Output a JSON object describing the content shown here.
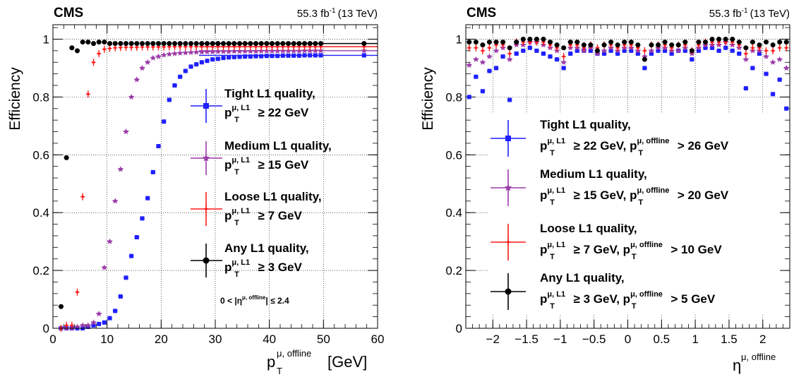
{
  "experiment": "CMS",
  "luminosity": "55.3 fb",
  "luminosity_sup": "-1",
  "energy": "(13 TeV)",
  "colors": {
    "tight": "#1f1fff",
    "medium": "#9b3aa8",
    "loose": "#ff1a1a",
    "any": "#000000"
  },
  "chart_data": [
    {
      "type": "scatter",
      "ylabel": "Efficiency",
      "xlabel": "p",
      "xlabel_sup": "μ, offline",
      "xlabel_sub": "T",
      "xlabel_unit": "[GeV]",
      "xlim": [
        0,
        60
      ],
      "ylim": [
        0,
        1.05
      ],
      "xticks": [
        "0",
        "10",
        "20",
        "30",
        "40",
        "50",
        "60"
      ],
      "yticks": [
        "0",
        "0.2",
        "0.4",
        "0.6",
        "0.8",
        "1"
      ],
      "grid": true,
      "legend_position": "right",
      "annotation": {
        "prefix": "0 < |η",
        "sup": "μ, offline",
        "suffix": "| ≤ 2.4"
      },
      "series": [
        {
          "key": "tight",
          "legend_line1": "Tight L1 quality,",
          "legend_line2": "≥ 22 GeV",
          "marker": "square",
          "x": [
            1.5,
            2.5,
            3.5,
            4.5,
            5.5,
            6.5,
            7.5,
            8.5,
            9.5,
            10.5,
            11.5,
            12.5,
            13.5,
            14.5,
            15.5,
            16.5,
            17.5,
            18.5,
            19.5,
            20.5,
            21.5,
            22.5,
            23.5,
            24.5,
            25.5,
            26.5,
            27.5,
            28.5,
            29.5,
            30.5,
            31.5,
            32.5,
            33.5,
            34.5,
            35.5,
            36.5,
            37.5,
            38.5,
            39.5,
            40.5,
            41.5,
            42.5,
            43.5,
            44.5,
            45.5,
            46.5,
            47.5,
            48.5,
            49.5,
            57.5
          ],
          "y": [
            0.0,
            0.0,
            0.0,
            0.0,
            0.0,
            0.005,
            0.01,
            0.015,
            0.02,
            0.035,
            0.06,
            0.11,
            0.175,
            0.25,
            0.315,
            0.38,
            0.45,
            0.54,
            0.63,
            0.715,
            0.79,
            0.84,
            0.87,
            0.89,
            0.905,
            0.913,
            0.92,
            0.925,
            0.93,
            0.932,
            0.935,
            0.937,
            0.938,
            0.939,
            0.94,
            0.94,
            0.941,
            0.941,
            0.942,
            0.942,
            0.942,
            0.943,
            0.943,
            0.943,
            0.943,
            0.944,
            0.944,
            0.944,
            0.944,
            0.944
          ]
        },
        {
          "key": "medium",
          "legend_line1": "Medium L1 quality,",
          "legend_line2": "≥ 15 GeV",
          "marker": "star",
          "x": [
            1.5,
            2.5,
            3.5,
            4.5,
            5.5,
            6.5,
            7.5,
            8.5,
            9.5,
            10.5,
            11.5,
            12.5,
            13.5,
            14.5,
            15.5,
            16.5,
            17.5,
            18.5,
            19.5,
            20.5,
            21.5,
            22.5,
            23.5,
            24.5,
            25.5,
            26.5,
            27.5,
            28.5,
            29.5,
            30.5,
            31.5,
            32.5,
            33.5,
            34.5,
            35.5,
            36.5,
            37.5,
            38.5,
            39.5,
            40.5,
            41.5,
            42.5,
            43.5,
            44.5,
            45.5,
            46.5,
            47.5,
            48.5,
            49.5,
            57.5
          ],
          "y": [
            0.0,
            0.0,
            0.0,
            0.005,
            0.01,
            0.01,
            0.02,
            0.05,
            0.21,
            0.3,
            0.44,
            0.55,
            0.68,
            0.8,
            0.86,
            0.9,
            0.92,
            0.935,
            0.94,
            0.945,
            0.948,
            0.95,
            0.952,
            0.953,
            0.954,
            0.955,
            0.955,
            0.956,
            0.956,
            0.957,
            0.957,
            0.957,
            0.958,
            0.958,
            0.958,
            0.958,
            0.958,
            0.959,
            0.959,
            0.959,
            0.959,
            0.959,
            0.959,
            0.959,
            0.959,
            0.96,
            0.96,
            0.96,
            0.96,
            0.96
          ]
        },
        {
          "key": "loose",
          "legend_line1": "Loose L1 quality,",
          "legend_line2": "≥ 7 GeV",
          "marker": "cross",
          "x": [
            1.5,
            2.5,
            3.5,
            4.5,
            5.5,
            6.5,
            7.5,
            8.5,
            9.5,
            10.5,
            11.5,
            12.5,
            13.5,
            14.5,
            15.5,
            16.5,
            17.5,
            18.5,
            19.5,
            20.5,
            21.5,
            22.5,
            23.5,
            24.5,
            25.5,
            26.5,
            27.5,
            28.5,
            29.5,
            30.5,
            31.5,
            32.5,
            33.5,
            34.5,
            35.5,
            36.5,
            37.5,
            38.5,
            39.5,
            40.5,
            41.5,
            42.5,
            43.5,
            44.5,
            45.5,
            46.5,
            47.5,
            48.5,
            49.5,
            57.5
          ],
          "y": [
            0.0,
            0.01,
            0.01,
            0.125,
            0.455,
            0.81,
            0.92,
            0.95,
            0.965,
            0.968,
            0.97,
            0.971,
            0.972,
            0.972,
            0.972,
            0.973,
            0.973,
            0.973,
            0.973,
            0.973,
            0.974,
            0.974,
            0.974,
            0.974,
            0.974,
            0.974,
            0.974,
            0.974,
            0.974,
            0.974,
            0.974,
            0.974,
            0.974,
            0.974,
            0.974,
            0.974,
            0.974,
            0.974,
            0.974,
            0.974,
            0.974,
            0.974,
            0.974,
            0.974,
            0.974,
            0.974,
            0.974,
            0.974,
            0.974,
            0.974
          ]
        },
        {
          "key": "any",
          "legend_line1": "Any L1 quality,",
          "legend_line2": "≥ 3 GeV",
          "marker": "circle",
          "x": [
            1.5,
            2.5,
            3.5,
            4.5,
            5.5,
            6.5,
            7.5,
            8.5,
            9.5,
            10.5,
            11.5,
            12.5,
            13.5,
            14.5,
            15.5,
            16.5,
            17.5,
            18.5,
            19.5,
            20.5,
            21.5,
            22.5,
            23.5,
            24.5,
            25.5,
            26.5,
            27.5,
            28.5,
            29.5,
            30.5,
            31.5,
            32.5,
            33.5,
            34.5,
            35.5,
            36.5,
            37.5,
            38.5,
            39.5,
            40.5,
            41.5,
            42.5,
            43.5,
            44.5,
            45.5,
            46.5,
            47.5,
            48.5,
            49.5,
            57.5
          ],
          "y": [
            0.075,
            0.59,
            0.97,
            0.96,
            0.99,
            0.99,
            0.985,
            0.99,
            0.99,
            0.985,
            0.985,
            0.985,
            0.985,
            0.985,
            0.985,
            0.985,
            0.985,
            0.985,
            0.985,
            0.985,
            0.985,
            0.985,
            0.985,
            0.985,
            0.985,
            0.985,
            0.985,
            0.985,
            0.985,
            0.985,
            0.985,
            0.985,
            0.985,
            0.985,
            0.985,
            0.985,
            0.985,
            0.985,
            0.985,
            0.985,
            0.985,
            0.985,
            0.985,
            0.985,
            0.985,
            0.985,
            0.985,
            0.985,
            0.985,
            0.985
          ]
        }
      ]
    },
    {
      "type": "scatter",
      "ylabel": "Efficiency",
      "xlabel": "η",
      "xlabel_sup": "μ, offline",
      "xlim": [
        -2.4,
        2.4
      ],
      "ylim": [
        0,
        1.05
      ],
      "xticks": [
        "−2",
        "−1.5",
        "−1",
        "−0.5",
        "0",
        "0.5",
        "1",
        "1.5",
        "2"
      ],
      "xtick_values": [
        -2,
        -1.5,
        -1,
        -0.5,
        0,
        0.5,
        1,
        1.5,
        2
      ],
      "yticks": [
        "0",
        "0.2",
        "0.4",
        "0.6",
        "0.8",
        "1"
      ],
      "grid": true,
      "legend_position": "bottom-center",
      "series": [
        {
          "key": "tight",
          "legend_line1": "Tight L1 quality,",
          "legend_line2a": "≥ 22 GeV, p",
          "legend_line2b": "> 26 GeV",
          "marker": "square",
          "x": [
            -2.35,
            -2.25,
            -2.15,
            -2.05,
            -1.95,
            -1.85,
            -1.75,
            -1.65,
            -1.55,
            -1.45,
            -1.35,
            -1.25,
            -1.15,
            -1.05,
            -0.95,
            -0.85,
            -0.75,
            -0.65,
            -0.55,
            -0.45,
            -0.35,
            -0.25,
            -0.15,
            -0.05,
            0.05,
            0.15,
            0.25,
            0.35,
            0.45,
            0.55,
            0.65,
            0.75,
            0.85,
            0.95,
            1.05,
            1.15,
            1.25,
            1.35,
            1.45,
            1.55,
            1.65,
            1.75,
            1.85,
            1.95,
            2.05,
            2.15,
            2.25,
            2.35
          ],
          "y": [
            0.8,
            0.87,
            0.82,
            0.89,
            0.9,
            0.94,
            0.79,
            0.95,
            0.96,
            0.97,
            0.96,
            0.95,
            0.94,
            0.93,
            0.9,
            0.95,
            0.96,
            0.96,
            0.96,
            0.95,
            0.95,
            0.96,
            0.95,
            0.96,
            0.96,
            0.95,
            0.9,
            0.95,
            0.96,
            0.96,
            0.95,
            0.96,
            0.96,
            0.93,
            0.96,
            0.97,
            0.97,
            0.96,
            0.97,
            0.96,
            0.95,
            0.83,
            0.9,
            0.95,
            0.88,
            0.81,
            0.86,
            0.76
          ]
        },
        {
          "key": "medium",
          "legend_line1": "Medium L1 quality,",
          "legend_line2a": "≥ 15 GeV, p",
          "legend_line2b": "> 20 GeV",
          "marker": "star",
          "x": [
            -2.35,
            -2.25,
            -2.15,
            -2.05,
            -1.95,
            -1.85,
            -1.75,
            -1.65,
            -1.55,
            -1.45,
            -1.35,
            -1.25,
            -1.15,
            -1.05,
            -0.95,
            -0.85,
            -0.75,
            -0.65,
            -0.55,
            -0.45,
            -0.35,
            -0.25,
            -0.15,
            -0.05,
            0.05,
            0.15,
            0.25,
            0.35,
            0.45,
            0.55,
            0.65,
            0.75,
            0.85,
            0.95,
            1.05,
            1.15,
            1.25,
            1.35,
            1.45,
            1.55,
            1.65,
            1.75,
            1.85,
            1.95,
            2.05,
            2.15,
            2.25,
            2.35
          ],
          "y": [
            0.91,
            0.93,
            0.92,
            0.94,
            0.96,
            0.97,
            0.93,
            0.98,
            0.98,
            0.99,
            0.99,
            0.98,
            0.97,
            0.96,
            0.92,
            0.97,
            0.97,
            0.96,
            0.97,
            0.95,
            0.96,
            0.97,
            0.96,
            0.97,
            0.97,
            0.96,
            0.94,
            0.96,
            0.97,
            0.97,
            0.96,
            0.96,
            0.97,
            0.95,
            0.97,
            0.98,
            0.98,
            0.98,
            0.99,
            0.98,
            0.97,
            0.93,
            0.96,
            0.96,
            0.94,
            0.92,
            0.93,
            0.9
          ]
        },
        {
          "key": "loose",
          "legend_line1": "Loose L1 quality,",
          "legend_line2a": "≥ 7 GeV, p",
          "legend_line2b": "> 10 GeV",
          "marker": "cross",
          "x": [
            -2.35,
            -2.25,
            -2.15,
            -2.05,
            -1.95,
            -1.85,
            -1.75,
            -1.65,
            -1.55,
            -1.45,
            -1.35,
            -1.25,
            -1.15,
            -1.05,
            -0.95,
            -0.85,
            -0.75,
            -0.65,
            -0.55,
            -0.45,
            -0.35,
            -0.25,
            -0.15,
            -0.05,
            0.05,
            0.15,
            0.25,
            0.35,
            0.45,
            0.55,
            0.65,
            0.75,
            0.85,
            0.95,
            1.05,
            1.15,
            1.25,
            1.35,
            1.45,
            1.55,
            1.65,
            1.75,
            1.85,
            1.95,
            2.05,
            2.15,
            2.25,
            2.35
          ],
          "y": [
            0.97,
            0.97,
            0.96,
            0.97,
            0.98,
            0.98,
            0.95,
            0.99,
            0.99,
            0.99,
            0.99,
            0.99,
            0.98,
            0.97,
            0.94,
            0.98,
            0.98,
            0.97,
            0.98,
            0.97,
            0.98,
            0.98,
            0.97,
            0.98,
            0.98,
            0.97,
            0.96,
            0.98,
            0.98,
            0.98,
            0.97,
            0.98,
            0.98,
            0.96,
            0.98,
            0.99,
            0.99,
            0.99,
            0.99,
            0.99,
            0.98,
            0.95,
            0.97,
            0.97,
            0.96,
            0.96,
            0.97,
            0.97
          ]
        },
        {
          "key": "any",
          "legend_line1": "Any L1 quality,",
          "legend_line2a": "≥ 3 GeV, p",
          "legend_line2b": "> 5 GeV",
          "marker": "circle",
          "x": [
            -2.35,
            -2.25,
            -2.15,
            -2.05,
            -1.95,
            -1.85,
            -1.75,
            -1.65,
            -1.55,
            -1.45,
            -1.35,
            -1.25,
            -1.15,
            -1.05,
            -0.95,
            -0.85,
            -0.75,
            -0.65,
            -0.55,
            -0.45,
            -0.35,
            -0.25,
            -0.15,
            -0.05,
            0.05,
            0.15,
            0.25,
            0.35,
            0.45,
            0.55,
            0.65,
            0.75,
            0.85,
            0.95,
            1.05,
            1.15,
            1.25,
            1.35,
            1.45,
            1.55,
            1.65,
            1.75,
            1.85,
            1.95,
            2.05,
            2.15,
            2.25,
            2.35
          ],
          "y": [
            0.99,
            0.99,
            0.98,
            0.99,
            0.99,
            0.99,
            0.97,
            0.99,
            1.0,
            1.0,
            1.0,
            1.0,
            0.99,
            0.98,
            0.97,
            0.99,
            0.99,
            0.98,
            0.98,
            0.96,
            0.98,
            0.99,
            0.98,
            0.99,
            0.99,
            0.98,
            0.93,
            0.98,
            0.98,
            0.99,
            0.98,
            0.98,
            0.99,
            0.96,
            0.99,
            0.99,
            1.0,
            1.0,
            1.0,
            1.0,
            0.99,
            0.97,
            0.99,
            0.98,
            0.99,
            0.98,
            0.99,
            0.99
          ]
        }
      ]
    }
  ]
}
